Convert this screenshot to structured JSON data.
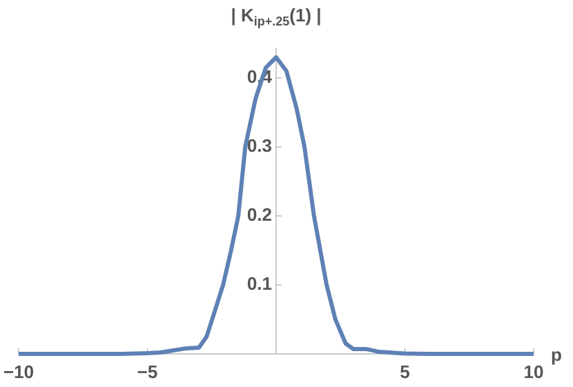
{
  "chart_data": {
    "type": "line",
    "ylabel": {
      "main": "| K",
      "subscript": "ip+.25",
      "tail": "(1) |"
    },
    "xlabel": "p",
    "x": [
      -10,
      -8,
      -6,
      -5,
      -4.5,
      -4,
      -3.5,
      -3,
      -2.7,
      -2.4,
      -2.06,
      -1.75,
      -1.47,
      -1.2,
      -0.8,
      -0.4,
      0,
      0.4,
      0.8,
      1.1,
      1.47,
      1.96,
      2.3,
      2.7,
      3,
      3.5,
      4,
      5,
      6,
      8,
      10
    ],
    "series": [
      {
        "color": "#5e81b5",
        "values": [
          0,
          0,
          0,
          0.001,
          0.002,
          0.005,
          0.008,
          0.009,
          0.025,
          0.06,
          0.1,
          0.15,
          0.2,
          0.3,
          0.37,
          0.415,
          0.43,
          0.41,
          0.355,
          0.3,
          0.2,
          0.1,
          0.05,
          0.015,
          0.007,
          0.007,
          0.003,
          0.0005,
          0,
          0,
          0
        ]
      }
    ],
    "xlim": [
      -10,
      10
    ],
    "ylim": [
      0,
      0.443
    ],
    "xticks": [
      {
        "value": -10,
        "label": "−10"
      },
      {
        "value": -5,
        "label": "−5"
      },
      5,
      10
    ],
    "yticks": [
      0.1,
      0.2,
      0.3,
      0.4
    ]
  }
}
